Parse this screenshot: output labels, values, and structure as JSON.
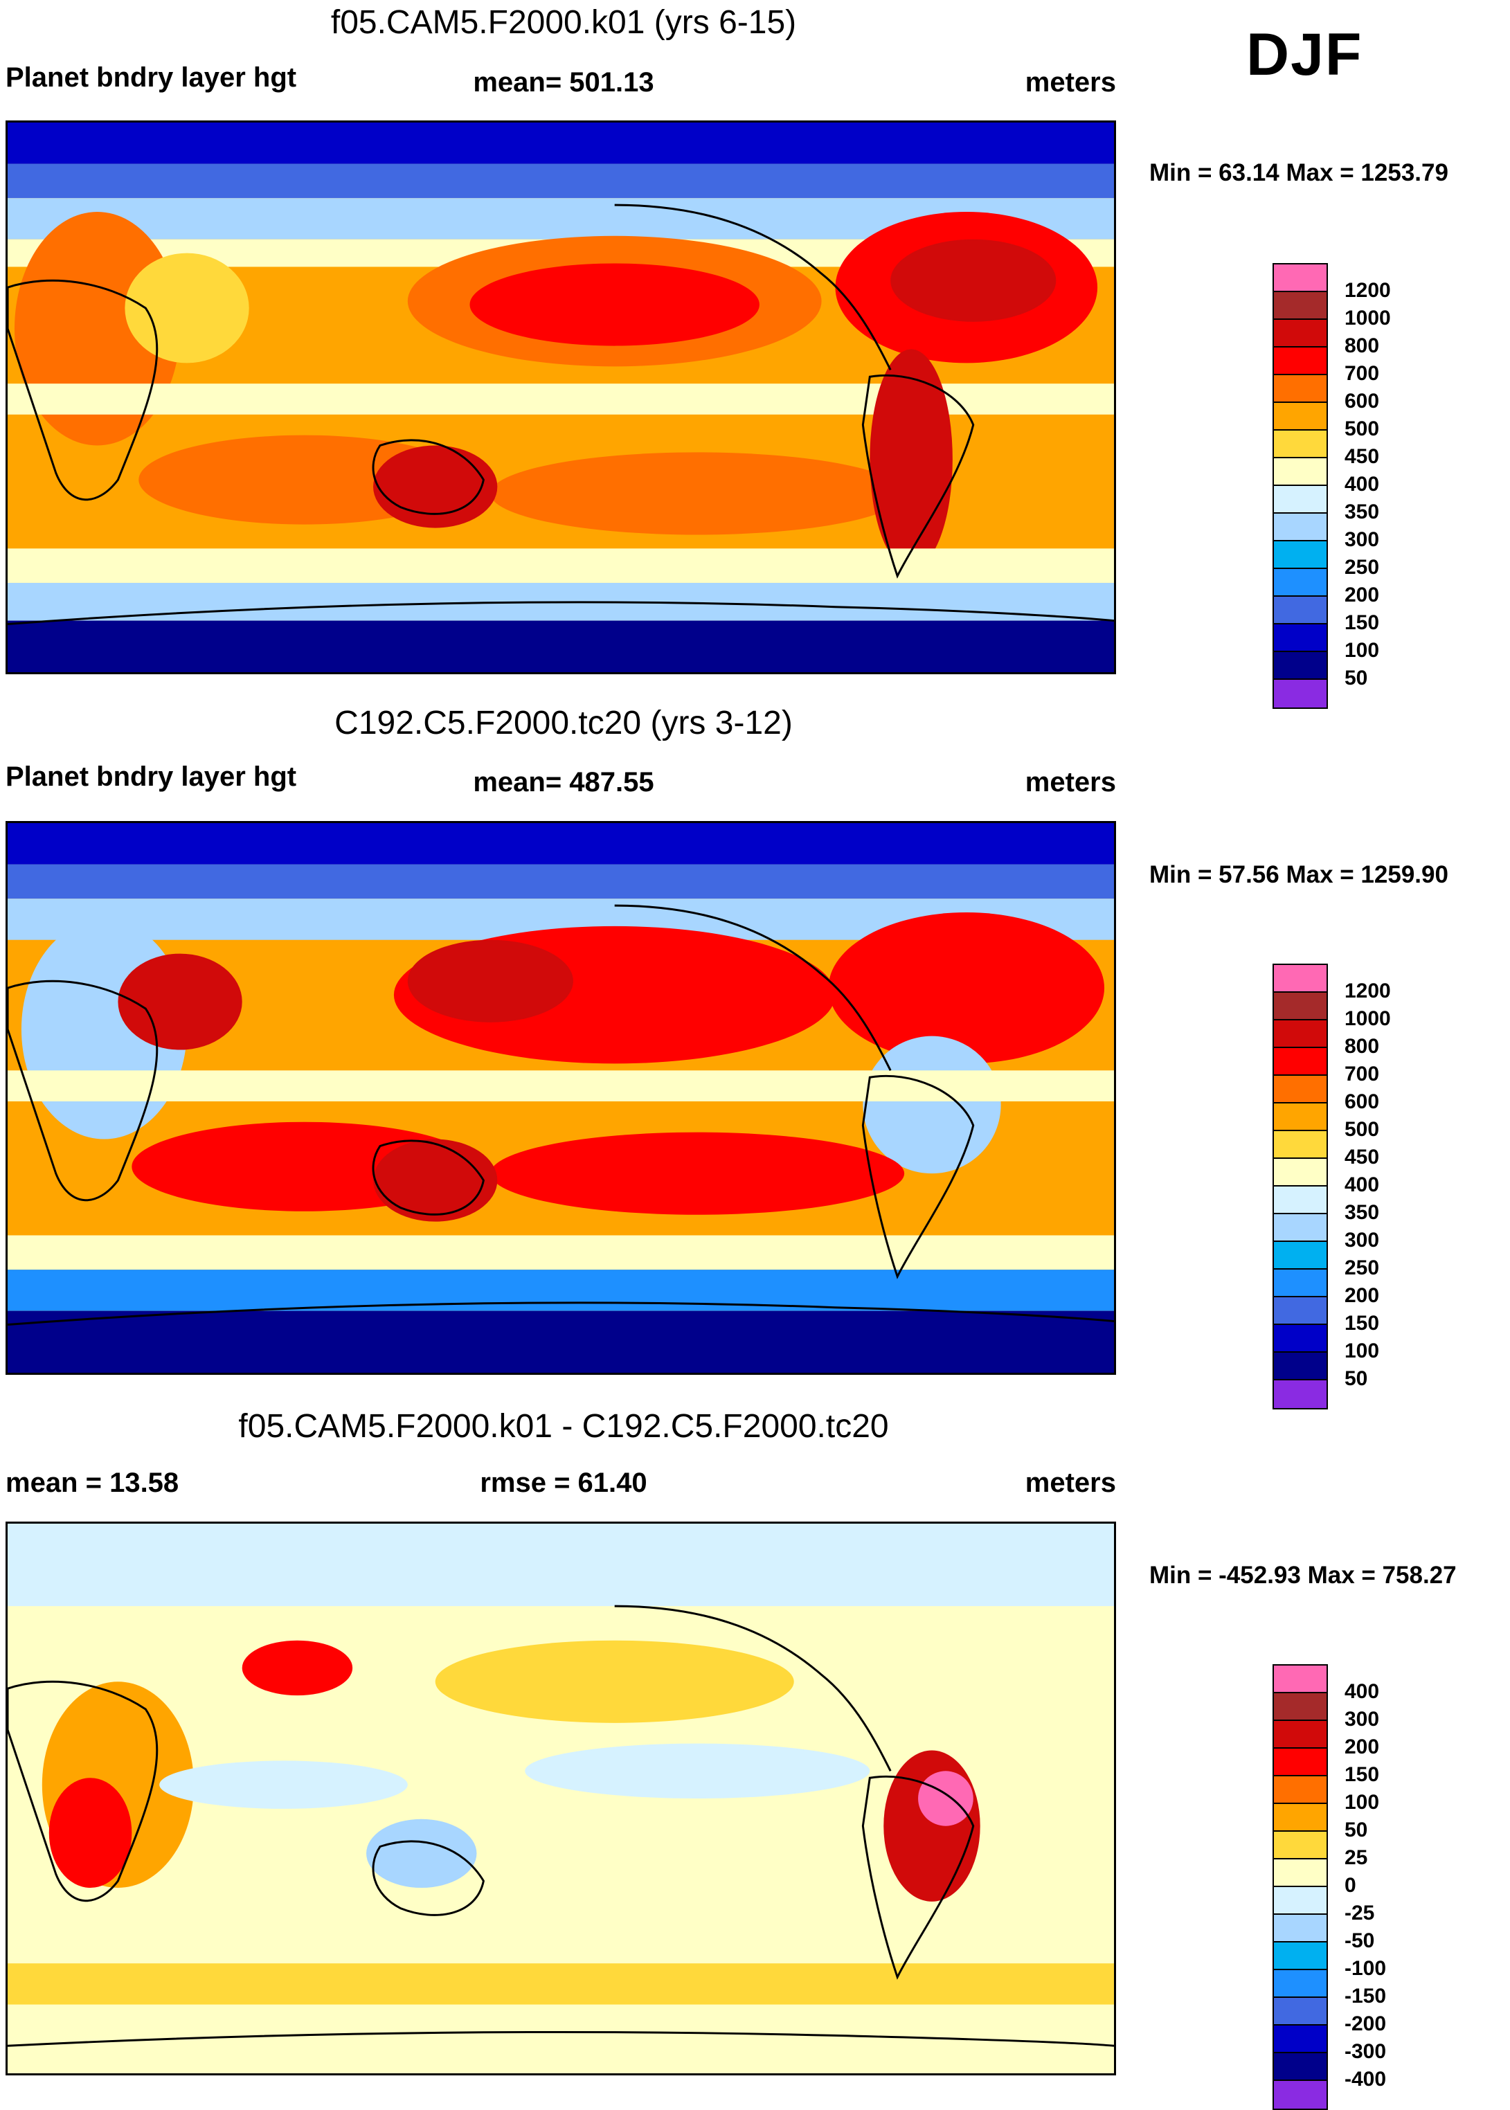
{
  "season": "DJF",
  "colors": {
    "ocean_polar": "#00128a",
    "coastline": "#000000"
  },
  "panels": [
    {
      "title": "f05.CAM5.F2000.k01 (yrs 6-15)",
      "left_text": "Planet bndry layer hgt",
      "center_text": "mean= 501.13",
      "right_text": "meters",
      "minmax": "Min =  63.14 Max = 1253.79",
      "colorbar": {
        "labels": [
          "1200",
          "1000",
          "800",
          "700",
          "600",
          "500",
          "450",
          "400",
          "350",
          "300",
          "250",
          "200",
          "150",
          "100",
          "50"
        ],
        "colors": [
          "#ff69b4",
          "#a52a2a",
          "#d10a0a",
          "#ff0000",
          "#ff6f00",
          "#ffa500",
          "#ffd93b",
          "#ffffc6",
          "#d6f2ff",
          "#a8d6ff",
          "#00b0f0",
          "#1e90ff",
          "#4169e1",
          "#0000c8",
          "#00008b",
          "#8a2be2"
        ]
      },
      "chart_data": {
        "type": "heatmap",
        "title": "f05.CAM5.F2000.k01 (yrs 6-15)",
        "variable": "Planet bndry layer hgt",
        "units": "meters",
        "mean": 501.13,
        "min": 63.14,
        "max": 1253.79,
        "levels": [
          50,
          100,
          150,
          200,
          250,
          300,
          350,
          400,
          450,
          500,
          600,
          700,
          800,
          1000,
          1200
        ]
      }
    },
    {
      "title": "C192.C5.F2000.tc20 (yrs 3-12)",
      "left_text": "Planet bndry layer hgt",
      "center_text": "mean= 487.55",
      "right_text": "meters",
      "minmax": "Min =  57.56 Max = 1259.90",
      "colorbar": {
        "labels": [
          "1200",
          "1000",
          "800",
          "700",
          "600",
          "500",
          "450",
          "400",
          "350",
          "300",
          "250",
          "200",
          "150",
          "100",
          "50"
        ],
        "colors": [
          "#ff69b4",
          "#a52a2a",
          "#d10a0a",
          "#ff0000",
          "#ff6f00",
          "#ffa500",
          "#ffd93b",
          "#ffffc6",
          "#d6f2ff",
          "#a8d6ff",
          "#00b0f0",
          "#1e90ff",
          "#4169e1",
          "#0000c8",
          "#00008b",
          "#8a2be2"
        ]
      },
      "chart_data": {
        "type": "heatmap",
        "title": "C192.C5.F2000.tc20 (yrs 3-12)",
        "variable": "Planet bndry layer hgt",
        "units": "meters",
        "mean": 487.55,
        "min": 57.56,
        "max": 1259.9,
        "levels": [
          50,
          100,
          150,
          200,
          250,
          300,
          350,
          400,
          450,
          500,
          600,
          700,
          800,
          1000,
          1200
        ]
      }
    },
    {
      "title": "f05.CAM5.F2000.k01 - C192.C5.F2000.tc20",
      "left_text": "mean =  13.58",
      "center_text": "rmse =  61.40",
      "right_text": "meters",
      "minmax": "Min = -452.93 Max = 758.27",
      "colorbar": {
        "labels": [
          "400",
          "300",
          "200",
          "150",
          "100",
          "50",
          "25",
          "0",
          "-25",
          "-50",
          "-100",
          "-150",
          "-200",
          "-300",
          "-400"
        ],
        "colors": [
          "#ff69b4",
          "#a52a2a",
          "#d10a0a",
          "#ff0000",
          "#ff6f00",
          "#ffa500",
          "#ffd93b",
          "#ffffc6",
          "#d6f2ff",
          "#a8d6ff",
          "#00b0f0",
          "#1e90ff",
          "#4169e1",
          "#0000c8",
          "#00008b",
          "#8a2be2"
        ]
      },
      "chart_data": {
        "type": "heatmap",
        "title": "f05.CAM5.F2000.k01 - C192.C5.F2000.tc20",
        "units": "meters",
        "mean": 13.58,
        "rmse": 61.4,
        "min": -452.93,
        "max": 758.27,
        "levels": [
          -400,
          -300,
          -200,
          -150,
          -100,
          -50,
          -25,
          0,
          25,
          50,
          100,
          150,
          200,
          300,
          400
        ]
      }
    }
  ]
}
